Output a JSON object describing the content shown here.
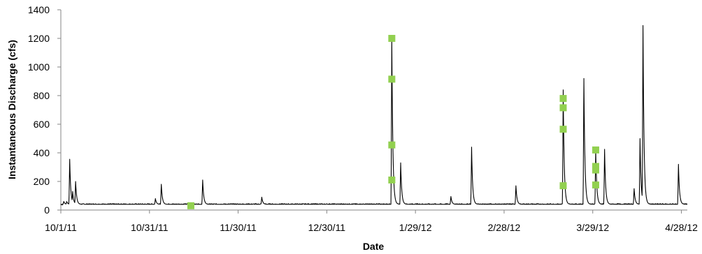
{
  "chart_data": {
    "type": "line",
    "title": "",
    "xlabel": "Date",
    "ylabel": "Instantaneous Discharge (cfs)",
    "xlim": [
      "2011-10-01",
      "2012-04-30"
    ],
    "ylim": [
      0,
      1400
    ],
    "y_ticks": [
      0,
      200,
      400,
      600,
      800,
      1000,
      1200,
      1400
    ],
    "x_ticks": [
      {
        "date": "2011-10-01",
        "label": "10/1/11"
      },
      {
        "date": "2011-10-31",
        "label": "10/31/11"
      },
      {
        "date": "2011-11-30",
        "label": "11/30/11"
      },
      {
        "date": "2011-12-30",
        "label": "12/30/11"
      },
      {
        "date": "2012-01-29",
        "label": "1/29/12"
      },
      {
        "date": "2012-02-28",
        "label": "2/28/12"
      },
      {
        "date": "2012-03-29",
        "label": "3/29/12"
      },
      {
        "date": "2012-04-28",
        "label": "4/28/12"
      }
    ],
    "grid": false,
    "legend": "none",
    "series": [
      {
        "style": "line",
        "color": "#000000",
        "baseline": 40,
        "peaks": [
          {
            "date": "2011-10-02",
            "value": 60
          },
          {
            "date": "2011-10-03",
            "value": 60
          },
          {
            "date": "2011-10-04",
            "value": 355
          },
          {
            "date": "2011-10-05",
            "value": 130
          },
          {
            "date": "2011-10-06",
            "value": 200
          },
          {
            "date": "2011-11-02",
            "value": 80
          },
          {
            "date": "2011-11-04",
            "value": 180
          },
          {
            "date": "2011-11-18",
            "value": 210
          },
          {
            "date": "2011-12-08",
            "value": 90
          },
          {
            "date": "2012-01-21",
            "value": 1200
          },
          {
            "date": "2012-01-24",
            "value": 330
          },
          {
            "date": "2012-02-10",
            "value": 95
          },
          {
            "date": "2012-02-17",
            "value": 440
          },
          {
            "date": "2012-03-03",
            "value": 170
          },
          {
            "date": "2012-03-19",
            "value": 840
          },
          {
            "date": "2012-03-26",
            "value": 920
          },
          {
            "date": "2012-03-30",
            "value": 420
          },
          {
            "date": "2012-04-02",
            "value": 425
          },
          {
            "date": "2012-04-12",
            "value": 150
          },
          {
            "date": "2012-04-14",
            "value": 500
          },
          {
            "date": "2012-04-15",
            "value": 1290
          },
          {
            "date": "2012-04-27",
            "value": 320
          }
        ]
      },
      {
        "style": "markers",
        "color": "#92D050",
        "points": [
          {
            "date": "2011-11-14",
            "value": 30
          },
          {
            "date": "2012-01-21",
            "value": 1200
          },
          {
            "date": "2012-01-21",
            "value": 915
          },
          {
            "date": "2012-01-21",
            "value": 455
          },
          {
            "date": "2012-01-21",
            "value": 210
          },
          {
            "date": "2012-03-19",
            "value": 780
          },
          {
            "date": "2012-03-19",
            "value": 715
          },
          {
            "date": "2012-03-19",
            "value": 565
          },
          {
            "date": "2012-03-19",
            "value": 170
          },
          {
            "date": "2012-03-30",
            "value": 420
          },
          {
            "date": "2012-03-30",
            "value": 305
          },
          {
            "date": "2012-03-30",
            "value": 280
          },
          {
            "date": "2012-03-30",
            "value": 175
          }
        ]
      }
    ]
  }
}
